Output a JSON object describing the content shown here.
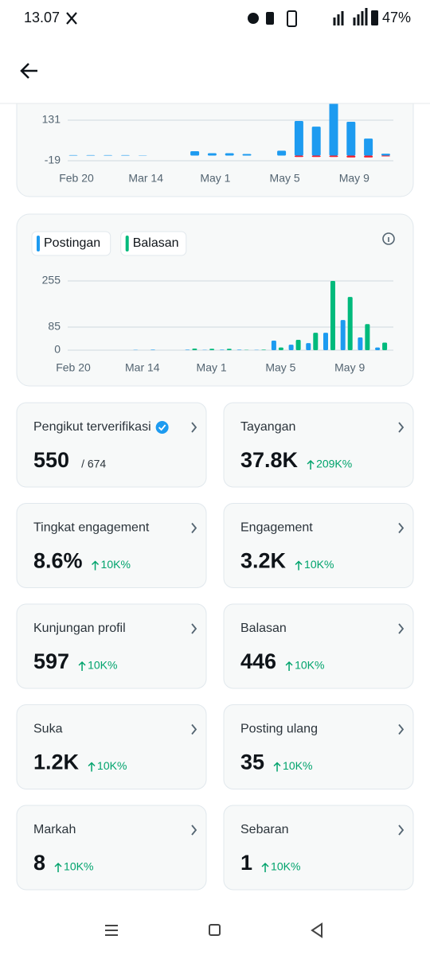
{
  "status_bar": {
    "time": "13.07",
    "battery": "47%"
  },
  "charts": [
    {
      "type": "bar",
      "categories": [
        "Feb 20",
        null,
        null,
        null,
        "Mar 14",
        null,
        null,
        null,
        "May 1",
        null,
        null,
        null,
        "May 5",
        null,
        null,
        null,
        "May 9",
        null,
        null
      ],
      "series": [
        {
          "color": "#1d9bf0",
          "values": [
            2,
            2,
            2,
            2,
            1,
            0,
            0,
            16,
            9,
            9,
            6,
            0,
            18,
            128,
            107,
            200,
            125,
            63,
            7
          ]
        },
        {
          "color": "#f4212e",
          "values": [
            0,
            0,
            0,
            0,
            0,
            0,
            0,
            0,
            0,
            0,
            0,
            0,
            0,
            -5,
            -5,
            -5,
            -7,
            -7,
            -3
          ]
        }
      ],
      "ylim": [
        -25,
        230
      ],
      "yticks": [
        131,
        -19
      ]
    },
    {
      "type": "bar",
      "categories": [
        "Feb 20",
        null,
        null,
        null,
        "Mar 14",
        null,
        null,
        null,
        "May 1",
        null,
        null,
        null,
        "May 5",
        null,
        null,
        null,
        "May 9",
        null,
        null
      ],
      "series": [
        {
          "name": "Postingan",
          "color": "#1d9bf0",
          "values": [
            0,
            0,
            0,
            0,
            1,
            2,
            0,
            2,
            1,
            2,
            2,
            1,
            35,
            20,
            26,
            64,
            111,
            47,
            10
          ]
        },
        {
          "name": "Balasan",
          "color": "#00ba7c",
          "values": [
            0,
            0,
            0,
            0,
            0,
            0,
            0,
            6,
            5,
            5,
            1,
            2,
            10,
            38,
            64,
            255,
            196,
            96,
            28
          ]
        }
      ],
      "ylim": [
        0,
        255
      ],
      "yticks": [
        255,
        85,
        0
      ]
    }
  ],
  "stats": [
    {
      "title": "Pengikut terverifikasi",
      "value": "550",
      "detail": "/ 674",
      "verified": true
    },
    {
      "title": "Tayangan",
      "value": "37.8K",
      "change": "209K%"
    },
    {
      "title": "Tingkat engagement",
      "value": "8.6%",
      "change": "10K%"
    },
    {
      "title": "Engagement",
      "value": "3.2K",
      "change": "10K%"
    },
    {
      "title": "Kunjungan profil",
      "value": "597",
      "change": "10K%"
    },
    {
      "title": "Balasan",
      "value": "446",
      "change": "10K%"
    },
    {
      "title": "Suka",
      "value": "1.2K",
      "change": "10K%"
    },
    {
      "title": "Posting ulang",
      "value": "35",
      "change": "10K%"
    },
    {
      "title": "Markah",
      "value": "8",
      "change": "10K%"
    },
    {
      "title": "Sebaran",
      "value": "1",
      "change": "10K%"
    }
  ]
}
